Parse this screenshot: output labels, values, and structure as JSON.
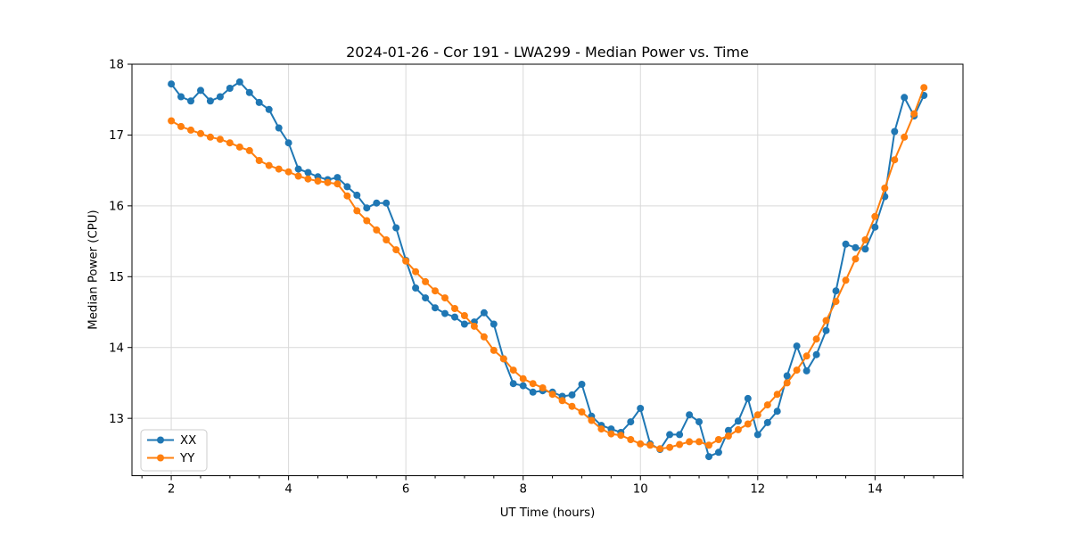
{
  "chart_data": {
    "type": "line",
    "title": "2024-01-26 - Cor 191 - LWA299 - Median Power vs. Time",
    "xlabel": "UT Time (hours)",
    "ylabel": "Median Power (CPU)",
    "xlim": [
      1.33,
      15.5
    ],
    "ylim": [
      12.19,
      18.0
    ],
    "x_major_ticks": [
      2,
      4,
      6,
      8,
      10,
      12,
      14
    ],
    "x_minor_tick_step": 0.5,
    "y_major_ticks": [
      13,
      14,
      15,
      16,
      17,
      18
    ],
    "grid": true,
    "legend_position": "lower-left",
    "x_start": 2.0,
    "x_step_hours": 0.1666667,
    "series": [
      {
        "name": "XX",
        "color": "#1f77b4",
        "values": [
          17.72,
          17.54,
          17.48,
          17.63,
          17.48,
          17.54,
          17.66,
          17.75,
          17.6,
          17.46,
          17.36,
          17.1,
          16.89,
          16.52,
          16.47,
          16.41,
          16.37,
          16.4,
          16.27,
          16.15,
          15.97,
          16.04,
          16.04,
          15.69,
          15.23,
          14.84,
          14.7,
          14.56,
          14.48,
          14.43,
          14.33,
          14.36,
          14.49,
          14.33,
          13.84,
          13.49,
          13.46,
          13.37,
          13.39,
          13.37,
          13.31,
          13.33,
          13.48,
          13.03,
          12.9,
          12.85,
          12.8,
          12.95,
          13.14,
          12.64,
          12.56,
          12.77,
          12.77,
          13.05,
          12.95,
          12.46,
          12.52,
          12.83,
          12.96,
          13.28,
          12.77,
          12.94,
          13.1,
          13.6,
          14.02,
          13.67,
          13.9,
          14.24,
          14.8,
          15.46,
          15.41,
          15.39,
          15.7,
          16.13,
          17.05,
          17.53,
          17.27,
          17.56
        ]
      },
      {
        "name": "YY",
        "color": "#ff7f0e",
        "values": [
          17.2,
          17.12,
          17.07,
          17.02,
          16.97,
          16.94,
          16.89,
          16.83,
          16.78,
          16.64,
          16.57,
          16.52,
          16.48,
          16.42,
          16.38,
          16.35,
          16.33,
          16.31,
          16.14,
          15.93,
          15.79,
          15.66,
          15.52,
          15.38,
          15.22,
          15.07,
          14.93,
          14.8,
          14.7,
          14.55,
          14.45,
          14.3,
          14.15,
          13.96,
          13.84,
          13.68,
          13.56,
          13.49,
          13.43,
          13.34,
          13.25,
          13.17,
          13.09,
          12.97,
          12.85,
          12.78,
          12.76,
          12.7,
          12.64,
          12.62,
          12.57,
          12.59,
          12.63,
          12.67,
          12.67,
          12.62,
          12.7,
          12.75,
          12.84,
          12.92,
          13.05,
          13.19,
          13.34,
          13.5,
          13.68,
          13.88,
          14.12,
          14.38,
          14.65,
          14.95,
          15.25,
          15.52,
          15.85,
          16.25,
          16.65,
          16.97,
          17.3,
          17.67
        ]
      }
    ]
  },
  "colors": {
    "background": "#ffffff",
    "grid": "#d9d9d9",
    "axis": "#000000",
    "legend_border": "#cccccc",
    "series_xx": "#1f77b4",
    "series_yy": "#ff7f0e"
  }
}
